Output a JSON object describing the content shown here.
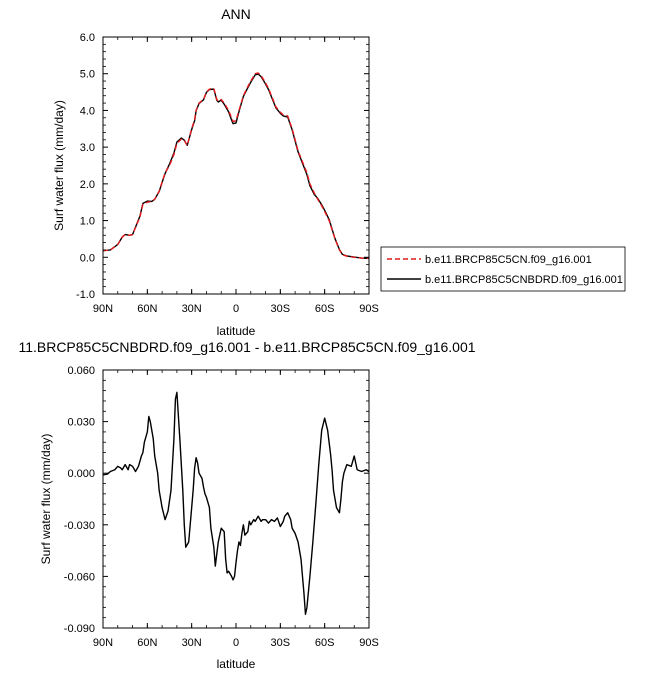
{
  "chart_data": [
    {
      "type": "line",
      "title": "ANN",
      "xlabel": "latitude",
      "ylabel": "Surf water flux (mm/day)",
      "xlim": [
        90,
        -90
      ],
      "ylim": [
        -1.0,
        6.0
      ],
      "xticks": [
        {
          "value": 90,
          "label": "90N"
        },
        {
          "value": 60,
          "label": "60N"
        },
        {
          "value": 30,
          "label": "30N"
        },
        {
          "value": 0,
          "label": "0"
        },
        {
          "value": -30,
          "label": "30S"
        },
        {
          "value": -60,
          "label": "60S"
        },
        {
          "value": -90,
          "label": "90S"
        }
      ],
      "yticks": [
        {
          "value": -1.0,
          "label": "-1.0"
        },
        {
          "value": 0.0,
          "label": "0.0"
        },
        {
          "value": 1.0,
          "label": "1.0"
        },
        {
          "value": 2.0,
          "label": "2.0"
        },
        {
          "value": 3.0,
          "label": "3.0"
        },
        {
          "value": 4.0,
          "label": "4.0"
        },
        {
          "value": 5.0,
          "label": "5.0"
        },
        {
          "value": 6.0,
          "label": "6.0"
        }
      ],
      "legend": "outside-right",
      "series": [
        {
          "name": "b.e11.BRCP85C5CN.f09_g16.001",
          "color": "#e41a1c",
          "dash": "dashed",
          "x": [
            90,
            85,
            80,
            77,
            75,
            72,
            70,
            65,
            63,
            60,
            57,
            55,
            52,
            50,
            48,
            45,
            42,
            40,
            37,
            35,
            33,
            30,
            28,
            27,
            25,
            22,
            20,
            18,
            15,
            13,
            12,
            10,
            8,
            5,
            3,
            2,
            0,
            -2,
            -5,
            -8,
            -10,
            -13,
            -15,
            -17,
            -20,
            -22,
            -25,
            -27,
            -30,
            -32,
            -35,
            -38,
            -40,
            -42,
            -45,
            -48,
            -50,
            -53,
            -55,
            -58,
            -60,
            -63,
            -65,
            -67,
            -70,
            -72,
            -75,
            -80,
            -85,
            -90
          ],
          "values": [
            0.18,
            0.2,
            0.35,
            0.55,
            0.62,
            0.6,
            0.62,
            1.1,
            1.45,
            1.5,
            1.52,
            1.58,
            1.8,
            2.05,
            2.3,
            2.5,
            2.8,
            3.1,
            3.22,
            3.18,
            3.05,
            3.5,
            3.75,
            4.0,
            4.2,
            4.3,
            4.5,
            4.58,
            4.6,
            4.3,
            4.25,
            4.3,
            4.2,
            4.0,
            3.8,
            3.7,
            3.72,
            4.0,
            4.4,
            4.65,
            4.8,
            5.0,
            5.02,
            4.95,
            4.75,
            4.6,
            4.3,
            4.1,
            3.95,
            3.88,
            3.85,
            3.5,
            3.2,
            2.9,
            2.6,
            2.3,
            2.0,
            1.75,
            1.6,
            1.4,
            1.25,
            1.0,
            0.75,
            0.5,
            0.2,
            0.07,
            0.03,
            0.0,
            -0.02,
            -0.03
          ]
        },
        {
          "name": "b.e11.BRCP85C5CNBDRD.f09_g16.001",
          "color": "#000000",
          "dash": "solid",
          "x": [
            90,
            85,
            80,
            77,
            75,
            72,
            70,
            65,
            63,
            60,
            57,
            55,
            52,
            50,
            48,
            45,
            42,
            40,
            37,
            35,
            33,
            30,
            28,
            27,
            25,
            22,
            20,
            18,
            15,
            13,
            12,
            10,
            8,
            5,
            3,
            2,
            0,
            -2,
            -5,
            -8,
            -10,
            -13,
            -15,
            -17,
            -20,
            -22,
            -25,
            -27,
            -30,
            -32,
            -35,
            -38,
            -40,
            -42,
            -45,
            -48,
            -50,
            -53,
            -55,
            -58,
            -60,
            -63,
            -65,
            -67,
            -70,
            -72,
            -75,
            -80,
            -85,
            -90
          ],
          "values": [
            0.18,
            0.2,
            0.35,
            0.55,
            0.62,
            0.6,
            0.62,
            1.12,
            1.47,
            1.53,
            1.52,
            1.58,
            1.79,
            2.04,
            2.28,
            2.54,
            2.84,
            3.14,
            3.25,
            3.19,
            3.05,
            3.48,
            3.72,
            3.99,
            4.19,
            4.29,
            4.49,
            4.57,
            4.58,
            4.28,
            4.23,
            4.28,
            4.17,
            3.96,
            3.74,
            3.64,
            3.66,
            3.97,
            4.38,
            4.62,
            4.77,
            4.97,
            4.99,
            4.92,
            4.72,
            4.57,
            4.27,
            4.07,
            3.92,
            3.85,
            3.82,
            3.47,
            3.17,
            2.87,
            2.56,
            2.25,
            1.95,
            1.71,
            1.62,
            1.43,
            1.28,
            1.03,
            0.77,
            0.51,
            0.21,
            0.08,
            0.035,
            0.005,
            -0.02,
            -0.03
          ]
        }
      ]
    },
    {
      "type": "line",
      "title": "11.BRCP85C5CNBDRD.f09_g16.001 - b.e11.BRCP85C5CN.f09_g16.001",
      "xlabel": "latitude",
      "ylabel": "Surf water flux (mm/day)",
      "xlim": [
        90,
        -90
      ],
      "ylim": [
        -0.09,
        0.06
      ],
      "xticks": [
        {
          "value": 90,
          "label": "90N"
        },
        {
          "value": 60,
          "label": "60N"
        },
        {
          "value": 30,
          "label": "30N"
        },
        {
          "value": 0,
          "label": "0"
        },
        {
          "value": -30,
          "label": "30S"
        },
        {
          "value": -60,
          "label": "60S"
        },
        {
          "value": -90,
          "label": "90S"
        }
      ],
      "yticks": [
        {
          "value": -0.09,
          "label": "-0.090"
        },
        {
          "value": -0.06,
          "label": "-0.060"
        },
        {
          "value": -0.03,
          "label": "-0.030"
        },
        {
          "value": 0.0,
          "label": "0.000"
        },
        {
          "value": 0.03,
          "label": "0.030"
        },
        {
          "value": 0.06,
          "label": "0.060"
        }
      ],
      "series": [
        {
          "color": "#000000",
          "dash": "solid",
          "x": [
            90,
            87,
            85,
            82,
            80,
            78,
            77,
            75,
            73,
            72,
            70,
            68,
            66,
            64,
            63,
            62,
            60,
            59,
            58,
            56,
            55,
            53,
            52,
            50,
            48,
            46,
            44,
            42,
            41,
            40,
            38,
            36,
            35,
            34,
            32,
            30,
            29,
            28,
            27,
            26,
            25,
            23,
            22,
            21,
            20,
            18,
            17,
            15,
            14,
            12,
            11,
            10,
            8,
            7,
            6,
            5,
            3,
            2,
            1,
            0,
            -1,
            -2,
            -3,
            -4,
            -5,
            -6,
            -8,
            -9,
            -10,
            -12,
            -13,
            -15,
            -17,
            -18,
            -20,
            -22,
            -24,
            -26,
            -28,
            -30,
            -32,
            -33,
            -35,
            -37,
            -38,
            -40,
            -42,
            -43,
            -44,
            -45,
            -46,
            -47,
            -48,
            -50,
            -52,
            -54,
            -56,
            -58,
            -60,
            -62,
            -63,
            -64,
            -65,
            -66,
            -68,
            -70,
            -71,
            -72,
            -73,
            -75,
            -78,
            -80,
            -82,
            -85,
            -88,
            -90
          ],
          "values": [
            -0.001,
            -0.0005,
            0.001,
            0.002,
            0.004,
            0.003,
            0.002,
            0.005,
            0.002,
            0.005,
            0.004,
            0.001,
            0.004,
            0.01,
            0.012,
            0.018,
            0.024,
            0.033,
            0.03,
            0.02,
            0.01,
            0.0,
            -0.01,
            -0.02,
            -0.027,
            -0.022,
            -0.01,
            0.02,
            0.043,
            0.047,
            0.02,
            -0.01,
            -0.03,
            -0.043,
            -0.04,
            -0.02,
            -0.01,
            0.003,
            0.009,
            0.006,
            0.0,
            -0.003,
            -0.008,
            -0.012,
            -0.014,
            -0.02,
            -0.032,
            -0.043,
            -0.054,
            -0.04,
            -0.036,
            -0.032,
            -0.034,
            -0.05,
            -0.058,
            -0.057,
            -0.06,
            -0.062,
            -0.06,
            -0.052,
            -0.045,
            -0.04,
            -0.042,
            -0.035,
            -0.03,
            -0.036,
            -0.034,
            -0.028,
            -0.03,
            -0.027,
            -0.028,
            -0.025,
            -0.028,
            -0.027,
            -0.027,
            -0.029,
            -0.027,
            -0.028,
            -0.026,
            -0.031,
            -0.028,
            -0.025,
            -0.023,
            -0.027,
            -0.032,
            -0.035,
            -0.04,
            -0.045,
            -0.05,
            -0.06,
            -0.07,
            -0.082,
            -0.078,
            -0.06,
            -0.04,
            -0.018,
            0.005,
            0.025,
            0.032,
            0.025,
            0.018,
            0.011,
            0.002,
            -0.01,
            -0.02,
            -0.023,
            -0.015,
            -0.005,
            0.0,
            0.005,
            0.004,
            0.01,
            0.002,
            0.001,
            0.002,
            0.001
          ]
        }
      ]
    }
  ]
}
